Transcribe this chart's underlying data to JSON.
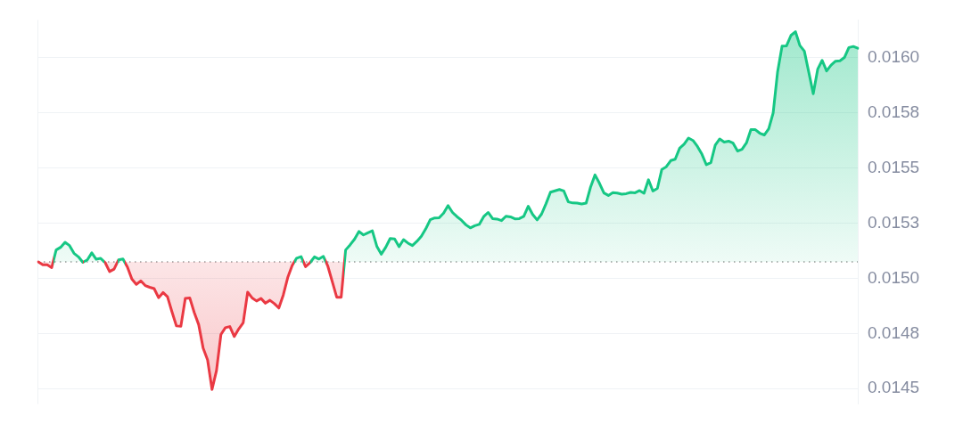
{
  "chart_data": {
    "type": "area",
    "categories": [
      null,
      null,
      null,
      null,
      null,
      null,
      null,
      null,
      null,
      null,
      null,
      null,
      null,
      null,
      null,
      null,
      null,
      null,
      null,
      null,
      null,
      null,
      null,
      null,
      null,
      null,
      null,
      null,
      null,
      null,
      null,
      null,
      null,
      null,
      null,
      null,
      null,
      null,
      null,
      null,
      null,
      null,
      null,
      null,
      null,
      null,
      null,
      null,
      null,
      null,
      null,
      null,
      null,
      null,
      null,
      null,
      null,
      null,
      null,
      null,
      null,
      null,
      null,
      null,
      null,
      null,
      null,
      null,
      null,
      null,
      null,
      null,
      null,
      null,
      null,
      null,
      null,
      null,
      null,
      null,
      null,
      null,
      null,
      null,
      null,
      null,
      null,
      null,
      null,
      null,
      null,
      null,
      null,
      null,
      null,
      null,
      null,
      null,
      null,
      null,
      null,
      null,
      null,
      null,
      null,
      null,
      null,
      null,
      null,
      null,
      null,
      null,
      null,
      null,
      null,
      null,
      null,
      null,
      null,
      null,
      null,
      null,
      null,
      null,
      null,
      null,
      null,
      null,
      null,
      null,
      null,
      null,
      null,
      null,
      null,
      null,
      null,
      null,
      null,
      null,
      null,
      null,
      null,
      null,
      null,
      null,
      null,
      null,
      null,
      null,
      null,
      null,
      null,
      null,
      null,
      null,
      null,
      null,
      null,
      null,
      null,
      null,
      null,
      null,
      null,
      null,
      null,
      null,
      null,
      null,
      null,
      null,
      null,
      null,
      null,
      null,
      null,
      null,
      null,
      null,
      null,
      null,
      null,
      null,
      null
    ],
    "series": [
      {
        "colors": [
          "#ea3943",
          "#ea3943",
          "#ea3943",
          "#ea3943",
          "#16c784",
          "#16c784",
          "#16c784",
          "#16c784",
          "#16c784",
          "#16c784",
          "#ea3943",
          "#16c784",
          "#16c784",
          "#16c784",
          "#16c784",
          "#ea3943",
          "#ea3943",
          "#ea3943",
          "#16c784",
          "#16c784",
          "#ea3943",
          "#ea3943",
          "#ea3943",
          "#ea3943",
          "#ea3943",
          "#ea3943",
          "#ea3943",
          "#ea3943",
          "#ea3943",
          "#ea3943",
          "#ea3943",
          "#ea3943",
          "#ea3943",
          "#ea3943",
          "#ea3943",
          "#ea3943",
          "#ea3943",
          "#ea3943",
          "#ea3943",
          "#ea3943",
          "#ea3943",
          "#ea3943",
          "#ea3943",
          "#ea3943",
          "#ea3943",
          "#ea3943",
          "#ea3943",
          "#ea3943",
          "#ea3943",
          "#ea3943",
          "#ea3943",
          "#ea3943",
          "#ea3943",
          "#ea3943",
          "#ea3943",
          "#ea3943",
          "#ea3943",
          "#ea3943",
          "#16c784",
          "#16c784",
          "#ea3943",
          "#ea3943",
          "#16c784",
          "#16c784",
          "#16c784",
          "#ea3943",
          "#ea3943",
          "#ea3943",
          "#ea3943",
          "#16c784",
          "#16c784",
          "#16c784",
          "#16c784",
          "#16c784",
          "#16c784",
          "#16c784",
          "#16c784",
          "#16c784",
          "#16c784",
          "#16c784",
          "#16c784",
          "#16c784",
          "#16c784",
          "#16c784",
          "#16c784",
          "#16c784",
          "#16c784",
          "#16c784",
          "#16c784",
          "#16c784",
          "#16c784",
          "#16c784",
          "#16c784",
          "#16c784",
          "#16c784",
          "#16c784",
          "#16c784",
          "#16c784",
          "#16c784",
          "#16c784",
          "#16c784",
          "#16c784",
          "#16c784",
          "#16c784",
          "#16c784",
          "#16c784",
          "#16c784",
          "#16c784",
          "#16c784",
          "#16c784",
          "#16c784",
          "#16c784",
          "#16c784",
          "#16c784",
          "#16c784",
          "#16c784",
          "#16c784",
          "#16c784",
          "#16c784",
          "#16c784",
          "#16c784",
          "#16c784",
          "#16c784",
          "#16c784",
          "#16c784",
          "#16c784",
          "#16c784",
          "#16c784",
          "#16c784",
          "#16c784",
          "#16c784",
          "#16c784",
          "#16c784",
          "#16c784",
          "#16c784",
          "#16c784",
          "#16c784",
          "#16c784",
          "#16c784",
          "#16c784",
          "#16c784",
          "#16c784",
          "#16c784",
          "#16c784",
          "#16c784",
          "#16c784",
          "#16c784",
          "#16c784",
          "#16c784",
          "#16c784",
          "#16c784",
          "#16c784",
          "#16c784",
          "#16c784",
          "#16c784",
          "#16c784",
          "#16c784",
          "#16c784",
          "#16c784",
          "#16c784",
          "#16c784",
          "#16c784",
          "#16c784",
          "#16c784",
          "#16c784",
          "#16c784",
          "#16c784",
          "#16c784",
          "#16c784",
          "#16c784",
          "#16c784",
          "#16c784",
          "#16c784",
          "#16c784",
          "#16c784",
          "#16c784",
          "#16c784",
          "#16c784",
          "#16c784",
          "#16c784",
          "#16c784",
          "#16c784",
          "#16c784",
          "#16c784",
          "#16c784"
        ],
        "values": [
          0.015074,
          0.015061,
          0.015061,
          0.015048,
          0.015128,
          0.01514,
          0.015163,
          0.015148,
          0.015113,
          0.015097,
          0.015072,
          0.015083,
          0.015115,
          0.015086,
          0.01509,
          0.015071,
          0.01503,
          0.015041,
          0.015083,
          0.015087,
          0.015051,
          0.014996,
          0.014972,
          0.014988,
          0.014967,
          0.014959,
          0.014953,
          0.014912,
          0.014935,
          0.014916,
          0.014848,
          0.014784,
          0.014782,
          0.014909,
          0.014911,
          0.014845,
          0.01479,
          0.014684,
          0.01463,
          0.014496,
          0.014581,
          0.014745,
          0.014776,
          0.014781,
          0.014736,
          0.01477,
          0.014798,
          0.014937,
          0.014911,
          0.014897,
          0.014908,
          0.014887,
          0.0149,
          0.014885,
          0.014865,
          0.014924,
          0.015003,
          0.015058,
          0.015091,
          0.015098,
          0.015052,
          0.01507,
          0.015097,
          0.015087,
          0.015099,
          0.015055,
          0.014985,
          0.014914,
          0.014914,
          0.015128,
          0.015151,
          0.015177,
          0.015212,
          0.015196,
          0.015206,
          0.015215,
          0.015145,
          0.015109,
          0.01514,
          0.01518,
          0.015178,
          0.015143,
          0.015175,
          0.015159,
          0.015148,
          0.015167,
          0.01519,
          0.015224,
          0.015265,
          0.015273,
          0.015274,
          0.015295,
          0.015329,
          0.015298,
          0.015279,
          0.015263,
          0.015242,
          0.015228,
          0.015238,
          0.015244,
          0.015279,
          0.015298,
          0.01527,
          0.015268,
          0.015261,
          0.015281,
          0.015278,
          0.015269,
          0.01527,
          0.01528,
          0.015326,
          0.015289,
          0.015264,
          0.015291,
          0.015338,
          0.01539,
          0.015396,
          0.015402,
          0.015395,
          0.015346,
          0.015341,
          0.01534,
          0.015336,
          0.01534,
          0.015413,
          0.015468,
          0.01543,
          0.015386,
          0.015375,
          0.015388,
          0.015386,
          0.015381,
          0.015383,
          0.015389,
          0.015387,
          0.015397,
          0.015385,
          0.015446,
          0.015395,
          0.015407,
          0.015493,
          0.015505,
          0.015533,
          0.015539,
          0.015589,
          0.015607,
          0.015635,
          0.015624,
          0.015597,
          0.015562,
          0.015514,
          0.015523,
          0.015603,
          0.015631,
          0.015617,
          0.015621,
          0.015612,
          0.015576,
          0.015584,
          0.015613,
          0.015673,
          0.015673,
          0.015657,
          0.015649,
          0.015677,
          0.015749,
          0.015936,
          0.016052,
          0.016053,
          0.0161,
          0.016117,
          0.016054,
          0.016029,
          0.015933,
          0.015836,
          0.015947,
          0.015987,
          0.015939,
          0.015965,
          0.015983,
          0.015985,
          0.016,
          0.016045,
          0.01605,
          0.016042
        ]
      }
    ],
    "ylim": [
      0.01443,
      0.01617
    ],
    "yticks": [
      0.0145,
      {
        "value": 0.01475,
        "label": "0.0148"
      },
      {
        "value": 0.015,
        "label": "0.0150"
      },
      {
        "value": 0.01525,
        "label": "0.0153"
      },
      0.0155,
      {
        "value": 0.01575,
        "label": "0.0158"
      },
      {
        "value": 0.016,
        "label": "0.0160"
      }
    ],
    "grid": "y",
    "ref_lines": [
      {
        "axis": "y",
        "value": 0.015074,
        "color": "#9a9a9a",
        "line_style": "dotted"
      }
    ]
  }
}
